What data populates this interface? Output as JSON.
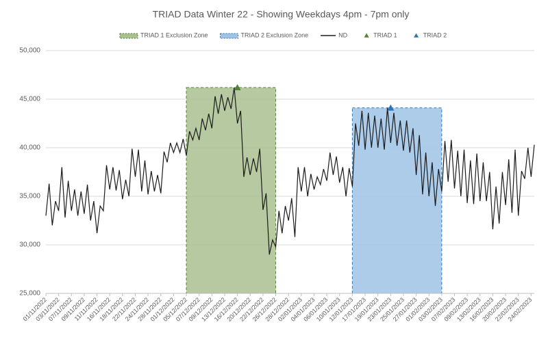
{
  "chart_data": {
    "type": "line",
    "title": "TRIAD Data Winter 22 - Showing Weekdays 4pm - 7pm only",
    "categories": [
      "01/11/2022",
      null,
      null,
      null,
      "03/11/2022",
      null,
      null,
      null,
      "07/11/2022",
      null,
      null,
      null,
      "09/11/2022",
      null,
      null,
      null,
      "11/11/2022",
      null,
      null,
      null,
      "16/11/2022",
      null,
      null,
      null,
      "18/11/2022",
      null,
      null,
      null,
      "22/11/2022",
      null,
      null,
      null,
      "24/11/2022",
      null,
      null,
      null,
      "28/11/2022",
      null,
      null,
      null,
      "01/12/2022",
      null,
      null,
      null,
      "05/12/2022",
      null,
      null,
      null,
      "07/12/2022",
      null,
      null,
      null,
      "09/12/2022",
      null,
      null,
      null,
      "13/12/2022",
      null,
      null,
      null,
      "16/12/2022",
      null,
      null,
      null,
      "20/12/2022",
      null,
      null,
      null,
      "22/12/2022",
      null,
      null,
      null,
      "26/12/2022",
      null,
      null,
      null,
      "28/12/2022",
      null,
      null,
      null,
      "02/01/2023",
      null,
      null,
      null,
      "04/01/2023",
      null,
      null,
      null,
      "06/01/2023",
      null,
      null,
      null,
      "10/01/2023",
      null,
      null,
      null,
      "12/01/2023",
      null,
      null,
      null,
      "17/01/2023",
      null,
      null,
      null,
      "19/01/2023",
      null,
      null,
      null,
      "23/01/2023",
      null,
      null,
      null,
      "25/01/2023",
      null,
      null,
      null,
      "27/01/2023",
      null,
      null,
      null,
      "01/02/2023",
      null,
      null,
      null,
      "03/02/2023",
      null,
      null,
      null,
      "07/02/2023",
      null,
      null,
      null,
      "09/02/2023",
      null,
      null,
      null,
      "13/02/2023",
      null,
      null,
      null,
      "16/02/2023",
      null,
      null,
      null,
      "20/02/2023",
      null,
      null,
      null,
      "22/02/2023",
      null,
      null,
      null,
      "24/02/2023",
      null
    ],
    "series": [
      {
        "name": "ND",
        "color": "#1a1a1a",
        "values": [
          33000,
          36300,
          32000,
          34500,
          33500,
          38000,
          32800,
          36600,
          33500,
          35700,
          33000,
          35500,
          33200,
          36200,
          32500,
          34500,
          31200,
          34000,
          33500,
          38200,
          35700,
          38000,
          35600,
          37700,
          34700,
          36700,
          35000,
          39900,
          37000,
          39800,
          35500,
          38700,
          35200,
          37600,
          35500,
          37200,
          35300,
          39600,
          38500,
          40500,
          39500,
          40500,
          39500,
          40900,
          39200,
          41700,
          40800,
          42000,
          40800,
          43000,
          41800,
          43500,
          42000,
          45300,
          43500,
          45500,
          43800,
          45200,
          44000,
          46200,
          42500,
          43800,
          37000,
          39000,
          37200,
          38900,
          37500,
          39900,
          33600,
          35300,
          29000,
          30500,
          29800,
          33500,
          31200,
          34000,
          32500,
          34800,
          30800,
          38000,
          35500,
          38000,
          35000,
          37300,
          35700,
          37000,
          36200,
          37800,
          36600,
          39500,
          37200,
          39100,
          36400,
          38000,
          35000,
          37900,
          36000,
          42500,
          40200,
          43800,
          39800,
          43600,
          40000,
          43300,
          40000,
          43000,
          39800,
          44100,
          40500,
          43600,
          40200,
          42800,
          39700,
          42800,
          39500,
          42000,
          37200,
          41300,
          35200,
          39500,
          35000,
          38500,
          34000,
          37800,
          35500,
          40700,
          36500,
          40800,
          35800,
          39700,
          35000,
          39800,
          34300,
          38700,
          34200,
          39400,
          34500,
          38500,
          34500,
          37500,
          31600,
          36000,
          32200,
          37500,
          34100,
          38800,
          33300,
          39800,
          33000,
          37600,
          36800,
          40000,
          37000,
          40300
        ]
      }
    ],
    "zones": [
      {
        "name": "TRIAD 1 Exclusion Zone",
        "color": "#a9c08f",
        "border": "#548235",
        "value": 46200,
        "from": "05/12/2022",
        "to": "26/12/2022"
      },
      {
        "name": "TRIAD 2 Exclusion Zone",
        "color": "#9dc3e6",
        "border": "#2e75b6",
        "value": 44100,
        "from": "12/01/2023",
        "to": "03/02/2023"
      }
    ],
    "markers": [
      {
        "name": "TRIAD 1",
        "color": "#548235",
        "value": 46200,
        "at": "16/12/2022"
      },
      {
        "name": "TRIAD 2",
        "color": "#2e75b6",
        "value": 44100,
        "at": "23/01/2023"
      }
    ],
    "ylim": [
      25000,
      50000
    ],
    "yticks": [
      {
        "value": 25000,
        "label": "25,000"
      },
      {
        "value": 30000,
        "label": "30,000"
      },
      {
        "value": 35000,
        "label": "35,000"
      },
      {
        "value": 40000,
        "label": "40,000"
      },
      {
        "value": 45000,
        "label": "45,000"
      },
      {
        "value": 50000,
        "label": "50,000"
      }
    ],
    "grid": true
  }
}
